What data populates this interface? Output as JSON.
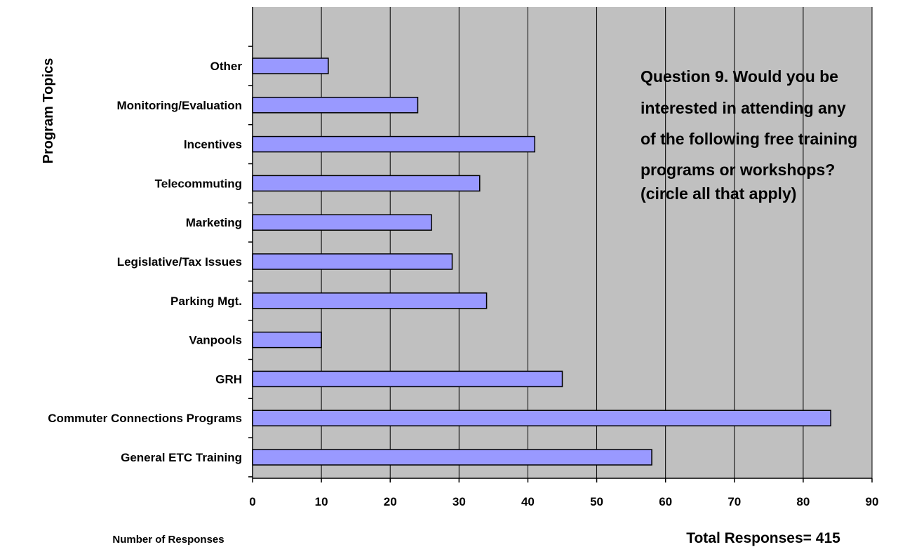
{
  "chart_data": {
    "type": "bar",
    "orientation": "horizontal",
    "categories": [
      "General ETC Training",
      "Commuter Connections Programs",
      "GRH",
      "Vanpools",
      "Parking Mgt.",
      "Legislative/Tax Issues",
      "Marketing",
      "Telecommuting",
      "Incentives",
      "Monitoring/Evaluation",
      "Other"
    ],
    "values": [
      58,
      84,
      45,
      10,
      34,
      29,
      26,
      33,
      41,
      24,
      11
    ],
    "xlabel": "Number of Responses",
    "ylabel": "Program Topics",
    "xlim": [
      0,
      90
    ],
    "xticks": [
      0,
      10,
      20,
      30,
      40,
      50,
      60,
      70,
      80,
      90
    ],
    "grid": "vertical",
    "bar_color": "#9999ff",
    "plot_background": "#c0c0c0",
    "annotation_lines": [
      "Question 9.  Would you be",
      "interested in attending any",
      "of the following free training",
      "programs or workshops?",
      "(circle all that apply)"
    ],
    "total_label": "Total Responses= 415"
  }
}
